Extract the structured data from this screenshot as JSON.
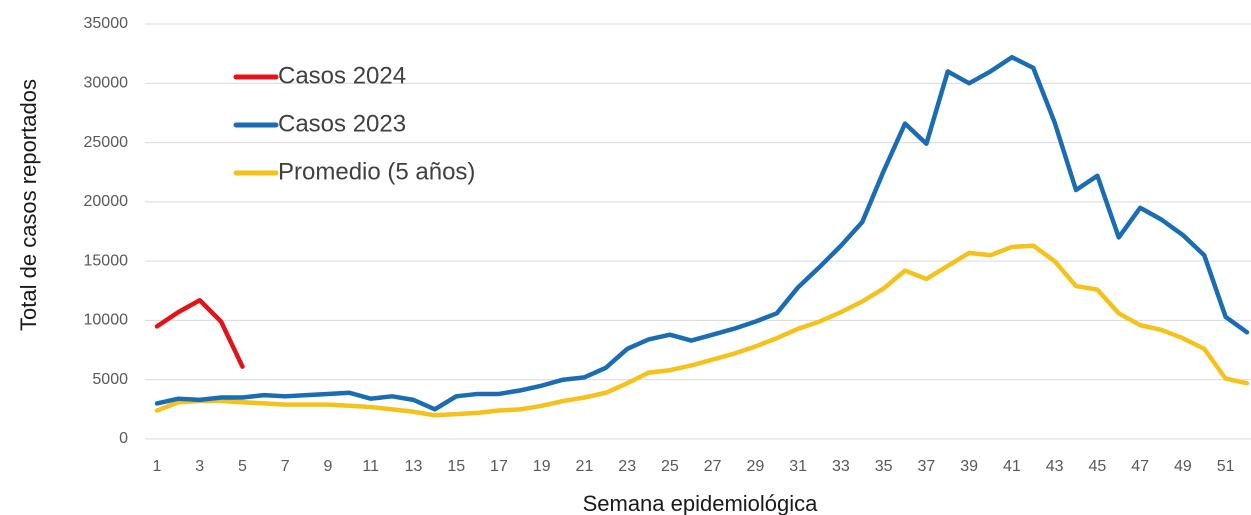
{
  "chart_data": {
    "type": "line",
    "x_label": "Semana epidemiológica",
    "y_label": "Total de casos reportados",
    "x": [
      1,
      2,
      3,
      4,
      5,
      6,
      7,
      8,
      9,
      10,
      11,
      12,
      13,
      14,
      15,
      16,
      17,
      18,
      19,
      20,
      21,
      22,
      23,
      24,
      25,
      26,
      27,
      28,
      29,
      30,
      31,
      32,
      33,
      34,
      35,
      36,
      37,
      38,
      39,
      40,
      41,
      42,
      43,
      44,
      45,
      46,
      47,
      48,
      49,
      50,
      51,
      52
    ],
    "series": [
      {
        "name": "Casos 2024",
        "color": "#e0141b",
        "values": [
          9500,
          10700,
          11700,
          9900,
          6100,
          null,
          null,
          null,
          null,
          null,
          null,
          null,
          null,
          null,
          null,
          null,
          null,
          null,
          null,
          null,
          null,
          null,
          null,
          null,
          null,
          null,
          null,
          null,
          null,
          null,
          null,
          null,
          null,
          null,
          null,
          null,
          null,
          null,
          null,
          null,
          null,
          null,
          null,
          null,
          null,
          null,
          null,
          null,
          null,
          null,
          null,
          null
        ]
      },
      {
        "name": "Casos 2023",
        "color": "#1a6db3",
        "values": [
          3000,
          3400,
          3300,
          3500,
          3500,
          3700,
          3600,
          3700,
          3800,
          3900,
          3400,
          3600,
          3300,
          2500,
          3600,
          3800,
          3800,
          4100,
          4500,
          5000,
          5200,
          6000,
          7600,
          8400,
          8800,
          8300,
          8800,
          9300,
          9900,
          10600,
          12800,
          14500,
          16300,
          18300,
          22600,
          26600,
          24900,
          31000,
          30000,
          31000,
          32200,
          31300,
          26700,
          21000,
          22200,
          17000,
          19500,
          18500,
          17200,
          15500,
          10300,
          9000
        ]
      },
      {
        "name": "Promedio (5 años)",
        "color": "#f5c21b",
        "values": [
          2400,
          3100,
          3200,
          3200,
          3100,
          3000,
          2900,
          2900,
          2900,
          2800,
          2700,
          2500,
          2300,
          2000,
          2100,
          2200,
          2400,
          2500,
          2800,
          3200,
          3500,
          3900,
          4700,
          5600,
          5800,
          6200,
          6700,
          7200,
          7800,
          8500,
          9300,
          9900,
          10700,
          11600,
          12700,
          14200,
          13500,
          14600,
          15700,
          15500,
          16200,
          16300,
          15000,
          12900,
          12600,
          10600,
          9600,
          9200,
          8500,
          7600,
          5100,
          4700
        ]
      }
    ],
    "xlim": [
      1,
      52
    ],
    "xticks": [
      1,
      3,
      5,
      7,
      9,
      11,
      13,
      15,
      17,
      19,
      21,
      23,
      25,
      27,
      29,
      31,
      33,
      35,
      37,
      39,
      41,
      43,
      45,
      47,
      49,
      51
    ],
    "ylim": [
      0,
      35000
    ],
    "yticks": [
      0,
      5000,
      10000,
      15000,
      20000,
      25000,
      30000,
      35000
    ],
    "grid": true
  }
}
